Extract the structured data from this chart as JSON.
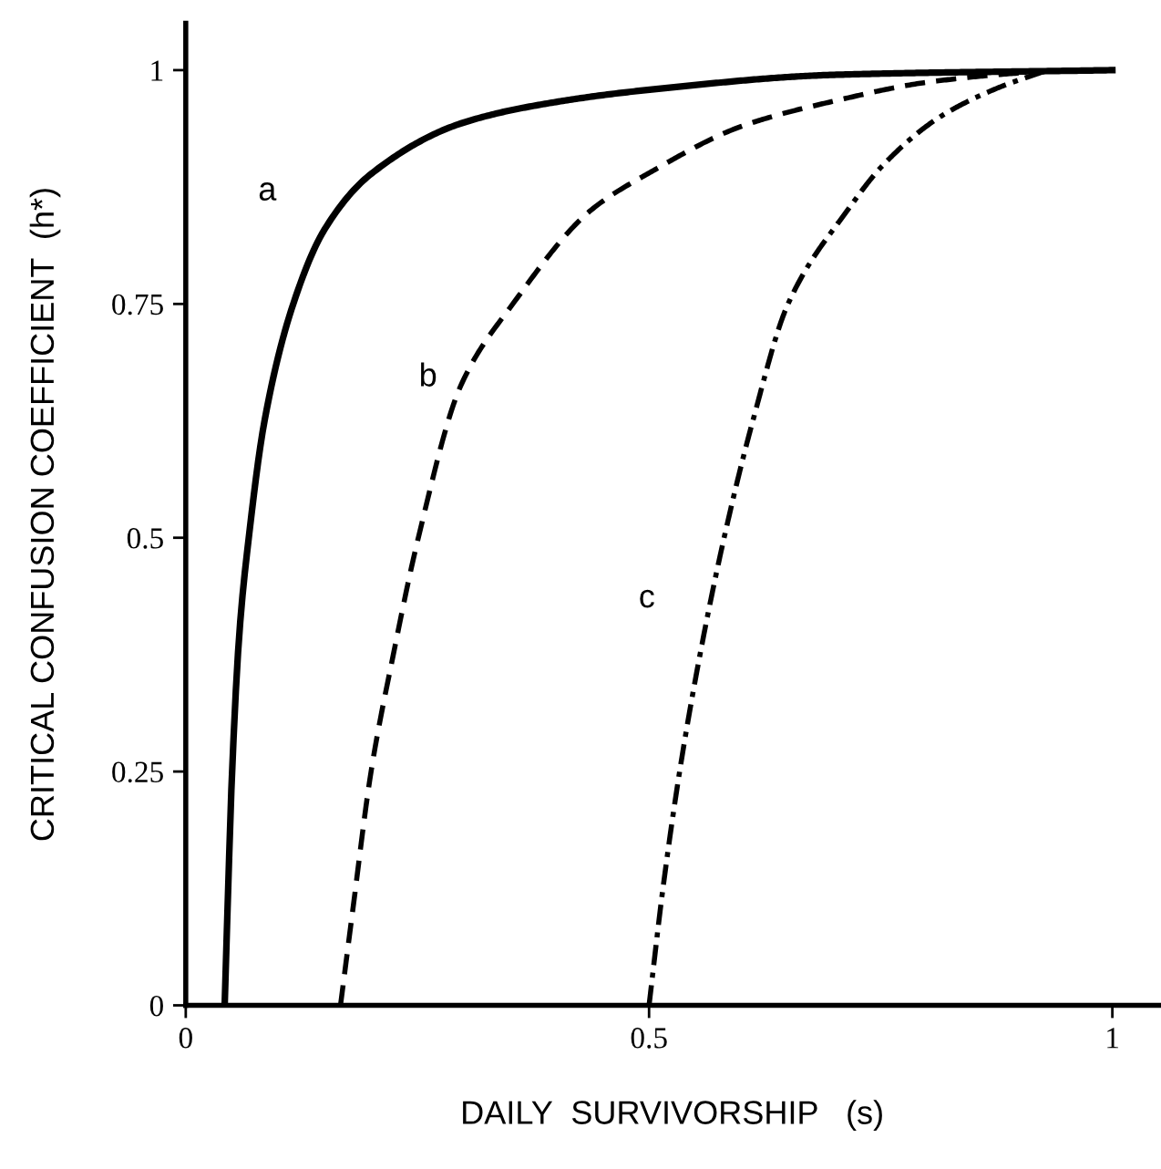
{
  "chart_data": {
    "type": "line",
    "xlabel": "DAILY  SURVIVORSHIP   (s)",
    "ylabel": "CRITICAL CONFUSION COEFFICIENT  (h*)",
    "xlim": [
      0,
      1.05
    ],
    "ylim": [
      0,
      1.05
    ],
    "xticks": [
      0,
      0.5,
      1
    ],
    "yticks": [
      0,
      0.25,
      0.5,
      0.75,
      1
    ],
    "grid": false,
    "legend": false,
    "marker": "none",
    "series": [
      {
        "name": "a",
        "color": "#000000",
        "line_style": "solid",
        "x": [
          0.042,
          0.045,
          0.05,
          0.058,
          0.068,
          0.085,
          0.116,
          0.15,
          0.2,
          0.3,
          0.4,
          0.5,
          0.7,
          1
        ],
        "values": [
          0,
          0.1,
          0.25,
          0.4,
          0.5,
          0.625,
          0.75,
          0.83,
          0.889,
          0.944,
          0.966,
          0.979,
          0.995,
          1
        ]
      },
      {
        "name": "b",
        "color": "#000000",
        "line_style": "dashed",
        "x": [
          0.167,
          0.18,
          0.2,
          0.224,
          0.251,
          0.297,
          0.353,
          0.437,
          0.5,
          0.6,
          0.7,
          0.8,
          0.9,
          0.95
        ],
        "values": [
          0,
          0.1,
          0.25,
          0.375,
          0.5,
          0.663,
          0.75,
          0.85,
          0.89,
          0.94,
          0.967,
          0.987,
          0.997,
          1
        ]
      },
      {
        "name": "c",
        "color": "#000000",
        "line_style": "dashdot",
        "x": [
          0.5,
          0.515,
          0.533,
          0.555,
          0.581,
          0.612,
          0.65,
          0.714,
          0.754,
          0.814,
          0.874,
          0.93
        ],
        "values": [
          0,
          0.125,
          0.25,
          0.375,
          0.5,
          0.625,
          0.75,
          0.85,
          0.9,
          0.95,
          0.98,
          1
        ]
      }
    ]
  }
}
